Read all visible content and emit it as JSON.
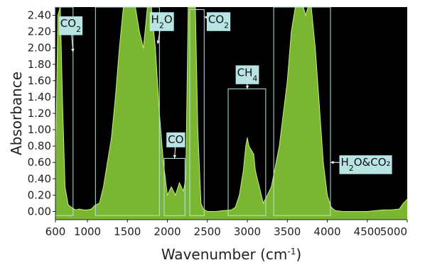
{
  "chart_data": {
    "type": "line",
    "title": "",
    "xlabel": "Wavenumber (cm",
    "xlabel_sup": "-1",
    "xlabel_end": ")",
    "ylabel": "Absorbance",
    "xlim": [
      600,
      5000
    ],
    "ylim": [
      -0.1,
      2.5
    ],
    "x_ticks": [
      600,
      1000,
      1500,
      2000,
      2500,
      3000,
      3500,
      4000,
      4500,
      5000
    ],
    "y_ticks": [
      0.0,
      0.2,
      0.4,
      0.6,
      0.8,
      1.0,
      1.2,
      1.4,
      1.6,
      1.8,
      2.0,
      2.2,
      2.4
    ],
    "x_tick_labels": [
      "600",
      "1000",
      "1500",
      "2000",
      "2500",
      "3000",
      "3500",
      "4000",
      "4500",
      "5000"
    ],
    "y_tick_labels": [
      "0.00",
      "0.20",
      "0.40",
      "0.60",
      "0.80",
      "1.00",
      "1.20",
      "1.40",
      "1.60",
      "1.80",
      "2.00",
      "2.20",
      "2.40"
    ],
    "grid": false,
    "colors": {
      "plot_background": "#000000",
      "series": "#8fd63a",
      "box": "#b8e4e4",
      "label_fill": "#b8e4e4"
    },
    "series": [
      {
        "x": [
          600,
          630,
          660,
          690,
          720,
          760,
          800,
          850,
          900,
          950,
          1000,
          1050,
          1100,
          1150,
          1200,
          1250,
          1300,
          1350,
          1400,
          1450,
          1500,
          1550,
          1600,
          1650,
          1700,
          1750,
          1800,
          1850,
          1900,
          1950,
          2000,
          2050,
          2100,
          2150,
          2200,
          2230,
          2260,
          2290,
          2320,
          2350,
          2380,
          2420,
          2450,
          2500,
          2600,
          2700,
          2800,
          2850,
          2900,
          2950,
          2980,
          3000,
          3020,
          3050,
          3080,
          3100,
          3150,
          3200,
          3300,
          3400,
          3500,
          3550,
          3600,
          3650,
          3700,
          3730,
          3760,
          3800,
          3850,
          3900,
          3950,
          4000,
          4050,
          4100,
          4200,
          4300,
          4400,
          4500,
          4600,
          4700,
          4800,
          4900,
          4950,
          5000
        ],
        "y": [
          0.5,
          2.4,
          2.5,
          1.3,
          0.3,
          0.08,
          0.05,
          0.02,
          0.03,
          0.02,
          0.02,
          0.03,
          0.08,
          0.1,
          0.3,
          0.6,
          0.9,
          1.4,
          2.0,
          2.5,
          2.5,
          2.5,
          2.5,
          2.2,
          2.0,
          2.5,
          2.5,
          2.0,
          1.2,
          0.6,
          0.2,
          0.3,
          0.2,
          0.35,
          0.25,
          0.4,
          2.5,
          2.5,
          2.5,
          2.5,
          1.0,
          0.1,
          0.03,
          0.0,
          0.0,
          0.01,
          0.02,
          0.05,
          0.2,
          0.5,
          0.8,
          0.9,
          0.8,
          0.75,
          0.7,
          0.5,
          0.3,
          0.1,
          0.3,
          0.8,
          1.6,
          2.2,
          2.5,
          2.5,
          2.5,
          2.4,
          2.5,
          2.5,
          2.0,
          1.3,
          0.6,
          0.2,
          0.05,
          0.01,
          0.0,
          0.0,
          0.0,
          0.0,
          0.01,
          0.02,
          0.02,
          0.03,
          0.1,
          0.15
        ]
      }
    ],
    "annotations": [
      {
        "label": "CO",
        "sub": "2",
        "tail": "",
        "box_x": [
          600,
          820
        ],
        "box_y": [
          -0.05,
          2.5
        ],
        "label_pos": [
          790,
          2.3
        ],
        "arrow_to": [
          820,
          1.95
        ]
      },
      {
        "label": "H",
        "sub": "2",
        "tail": "O",
        "box_x": [
          1100,
          1900
        ],
        "box_y": [
          -0.05,
          2.5
        ],
        "label_pos": [
          1930,
          2.35
        ],
        "arrow_to": [
          1880,
          2.05
        ]
      },
      {
        "label": "CO",
        "sub": "",
        "tail": "",
        "box_x": [
          1960,
          2220
        ],
        "box_y": [
          -0.05,
          0.65
        ],
        "label_pos": [
          2105,
          0.88
        ],
        "arrow_to": [
          2090,
          0.65
        ]
      },
      {
        "label": "CO",
        "sub": "2",
        "tail": "",
        "box_x": [
          2280,
          2460
        ],
        "box_y": [
          -0.05,
          2.47
        ],
        "label_pos": [
          2640,
          2.35
        ],
        "arrow_to": [
          2460,
          2.38
        ]
      },
      {
        "label": "CH",
        "sub": "4",
        "tail": "",
        "box_x": [
          2760,
          3230
        ],
        "box_y": [
          -0.05,
          1.5
        ],
        "label_pos": [
          3000,
          1.7
        ],
        "arrow_to": [
          3000,
          1.5
        ]
      },
      {
        "label": "H",
        "sub": "2",
        "tail": "O&CO₂",
        "box_x": [
          3330,
          4040
        ],
        "box_y": [
          -0.05,
          2.5
        ],
        "label_pos": [
          4480,
          0.6
        ],
        "arrow_to": [
          4040,
          0.6
        ]
      }
    ]
  }
}
